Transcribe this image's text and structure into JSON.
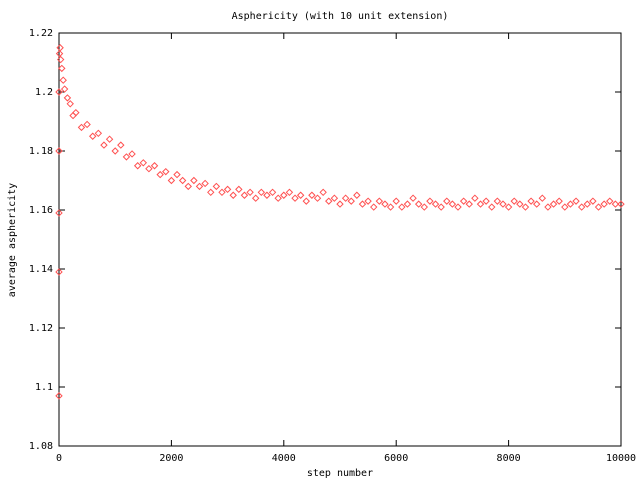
{
  "chart_data": {
    "type": "scatter",
    "title": "Asphericity (with 10 unit extension)",
    "xlabel": "step number",
    "ylabel": "average asphericity",
    "xlim": [
      0,
      10000
    ],
    "ylim": [
      1.08,
      1.22
    ],
    "xticks": [
      0,
      2000,
      4000,
      6000,
      8000,
      10000
    ],
    "yticks": [
      1.08,
      1.1,
      1.12,
      1.14,
      1.16,
      1.18,
      1.2,
      1.22
    ],
    "grid": false,
    "series": [
      {
        "color": "#ff5050",
        "x": [
          0,
          0,
          0,
          0,
          0,
          10,
          20,
          30,
          50,
          75,
          100,
          150,
          200,
          250,
          300,
          400,
          500,
          600,
          700,
          800,
          900,
          1000,
          1100,
          1200,
          1300,
          1400,
          1500,
          1600,
          1700,
          1800,
          1900,
          2000,
          2100,
          2200,
          2300,
          2400,
          2500,
          2600,
          2700,
          2800,
          2900,
          3000,
          3100,
          3200,
          3300,
          3400,
          3500,
          3600,
          3700,
          3800,
          3900,
          4000,
          4100,
          4200,
          4300,
          4400,
          4500,
          4600,
          4700,
          4800,
          4900,
          5000,
          5100,
          5200,
          5300,
          5400,
          5500,
          5600,
          5700,
          5800,
          5900,
          6000,
          6100,
          6200,
          6300,
          6400,
          6500,
          6600,
          6700,
          6800,
          6900,
          7000,
          7100,
          7200,
          7300,
          7400,
          7500,
          7600,
          7700,
          7800,
          7900,
          8000,
          8100,
          8200,
          8300,
          8400,
          8500,
          8600,
          8700,
          8800,
          8900,
          9000,
          9100,
          9200,
          9300,
          9400,
          9500,
          9600,
          9700,
          9800,
          9900,
          10000
        ],
        "values": [
          1.097,
          1.139,
          1.159,
          1.18,
          1.2,
          1.213,
          1.215,
          1.211,
          1.208,
          1.204,
          1.201,
          1.198,
          1.196,
          1.192,
          1.193,
          1.188,
          1.189,
          1.185,
          1.186,
          1.182,
          1.184,
          1.18,
          1.182,
          1.178,
          1.179,
          1.175,
          1.176,
          1.174,
          1.175,
          1.172,
          1.173,
          1.17,
          1.172,
          1.17,
          1.168,
          1.17,
          1.168,
          1.169,
          1.166,
          1.168,
          1.166,
          1.167,
          1.165,
          1.167,
          1.165,
          1.166,
          1.164,
          1.166,
          1.165,
          1.166,
          1.164,
          1.165,
          1.166,
          1.164,
          1.165,
          1.163,
          1.165,
          1.164,
          1.166,
          1.163,
          1.164,
          1.162,
          1.164,
          1.163,
          1.165,
          1.162,
          1.163,
          1.161,
          1.163,
          1.162,
          1.161,
          1.163,
          1.161,
          1.162,
          1.164,
          1.162,
          1.161,
          1.163,
          1.162,
          1.161,
          1.163,
          1.162,
          1.161,
          1.163,
          1.162,
          1.164,
          1.162,
          1.163,
          1.161,
          1.163,
          1.162,
          1.161,
          1.163,
          1.162,
          1.161,
          1.163,
          1.162,
          1.164,
          1.161,
          1.162,
          1.163,
          1.161,
          1.162,
          1.163,
          1.161,
          1.162,
          1.163,
          1.161,
          1.162,
          1.163,
          1.162,
          1.162
        ]
      }
    ]
  }
}
